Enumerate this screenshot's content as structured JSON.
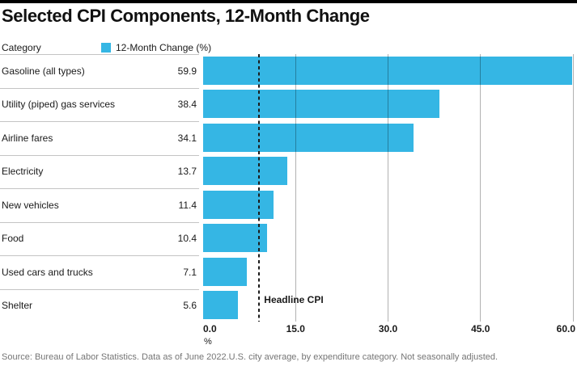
{
  "title": "Selected CPI Components, 12-Month Change",
  "header": {
    "category_label": "Category",
    "legend": {
      "label": "12-Month Change (%)",
      "swatch_color": "#35b6e4"
    }
  },
  "chart_data": {
    "type": "bar",
    "orientation": "horizontal",
    "title": "Selected CPI Components, 12-Month Change",
    "series_name": "12-Month Change (%)",
    "categories": [
      "Gasoline (all types)",
      "Utility (piped) gas services",
      "Airline fares",
      "Electricity",
      "New vehicles",
      "Food",
      "Used cars and trucks",
      "Shelter"
    ],
    "values": [
      59.9,
      38.4,
      34.1,
      13.7,
      11.4,
      10.4,
      7.1,
      5.6
    ],
    "value_labels": [
      "59.9",
      "38.4",
      "34.1",
      "13.7",
      "11.4",
      "10.4",
      "7.1",
      "5.6"
    ],
    "xlabel": "%",
    "xlim": [
      0,
      60
    ],
    "xticks": [
      0,
      15,
      30,
      45,
      60
    ],
    "xtick_labels": [
      "0.0",
      "15.0",
      "30.0",
      "45.0",
      "60.0"
    ],
    "grid": "vertical",
    "legend_position": "top-left",
    "bar_color": "#35b6e4",
    "reference_line": {
      "label": "Headline CPI",
      "value": 9.1,
      "style": "dashed"
    }
  },
  "footer": {
    "source": "Source: Bureau of Labor Statistics. Data as of June 2022.U.S. city average, by expenditure category. Not seasonally adjusted."
  }
}
